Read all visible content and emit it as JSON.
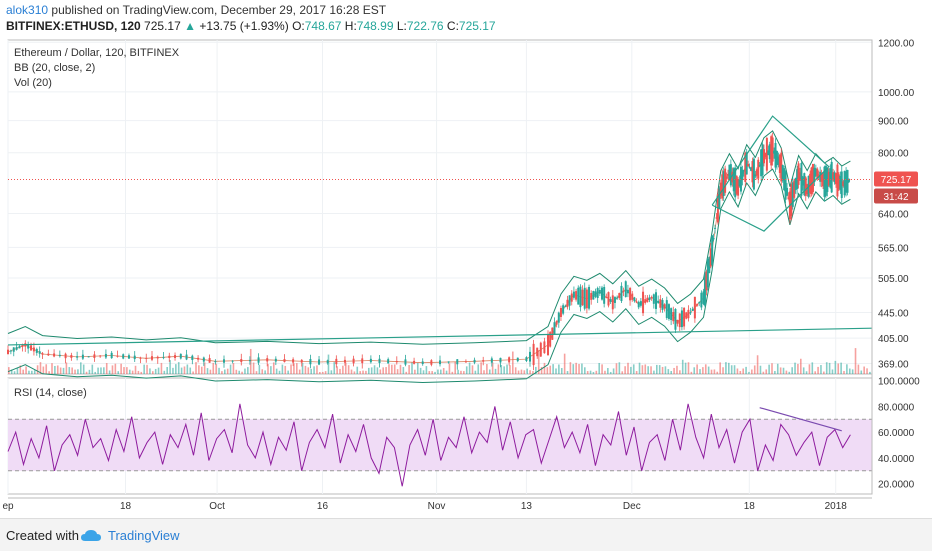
{
  "header": {
    "user": "alok310",
    "published_text": "published on TradingView.com, December 29, 2017 16:28 EST",
    "symbol": "BITFINEX:ETHUSD, 120",
    "last": "725.17",
    "change_arrow": "▲",
    "change": "+13.75 (+1.93%)",
    "o_label": "O:",
    "o_value": "748.67",
    "h_label": "H:",
    "h_value": "748.99",
    "l_label": "L:",
    "l_value": "722.76",
    "c_label": "C:",
    "c_value": "725.17"
  },
  "legend": {
    "title": "Ethereum / Dollar, 120, BITFINEX",
    "bb": "BB (20, close, 2)",
    "vol": "Vol (20)",
    "rsi": "RSI (14, close)"
  },
  "price_badges": {
    "last": "725.17",
    "timer": "31:42"
  },
  "colors": {
    "up": "#26a69a",
    "down": "#ef5350",
    "rsi_line": "#8e1c9e",
    "rsi_band": "#f0dcf6",
    "last_price": "#ef5350",
    "bb_line": "#1e8a6e",
    "brand": "#2a7fd4"
  },
  "footer": {
    "created": "Created with",
    "brand": "TradingView",
    "logo_icon": "tradingview-cloud-icon"
  },
  "chart_data": [
    {
      "type": "candlestick",
      "title": "Ethereum / Dollar, 120, BITFINEX",
      "scale": "log",
      "y_ticks": [
        369,
        405,
        445,
        505,
        565,
        640,
        725.17,
        800,
        900,
        1000,
        1200
      ],
      "y_tick_labels": [
        "369.00",
        "405.00",
        "445.00",
        "505.00",
        "565.00",
        "640.00",
        "725.17",
        "800.00",
        "900.00",
        "1000.00",
        "1200.00"
      ],
      "ylim": [
        355,
        1210
      ],
      "x_tick_labels": [
        "ep",
        "18",
        "Oct",
        "16",
        "Nov",
        "13",
        "Dec",
        "18",
        "2018"
      ],
      "x_ticks_fraction": [
        0.0,
        0.136,
        0.242,
        0.364,
        0.496,
        0.6,
        0.722,
        0.858,
        0.958
      ],
      "last_price": 725.17,
      "price_path": [
        [
          0.0,
          385
        ],
        [
          0.02,
          395
        ],
        [
          0.04,
          382
        ],
        [
          0.08,
          378
        ],
        [
          0.12,
          380
        ],
        [
          0.16,
          376
        ],
        [
          0.2,
          379
        ],
        [
          0.24,
          372
        ],
        [
          0.3,
          374
        ],
        [
          0.36,
          371
        ],
        [
          0.42,
          373
        ],
        [
          0.48,
          370
        ],
        [
          0.54,
          372
        ],
        [
          0.6,
          375
        ],
        [
          0.625,
          395
        ],
        [
          0.64,
          445
        ],
        [
          0.655,
          475
        ],
        [
          0.67,
          468
        ],
        [
          0.685,
          480
        ],
        [
          0.7,
          462
        ],
        [
          0.715,
          485
        ],
        [
          0.73,
          458
        ],
        [
          0.745,
          470
        ],
        [
          0.76,
          455
        ],
        [
          0.775,
          430
        ],
        [
          0.79,
          445
        ],
        [
          0.805,
          470
        ],
        [
          0.815,
          560
        ],
        [
          0.825,
          700
        ],
        [
          0.835,
          745
        ],
        [
          0.845,
          705
        ],
        [
          0.855,
          770
        ],
        [
          0.865,
          735
        ],
        [
          0.875,
          790
        ],
        [
          0.885,
          810
        ],
        [
          0.895,
          760
        ],
        [
          0.905,
          660
        ],
        [
          0.915,
          740
        ],
        [
          0.925,
          700
        ],
        [
          0.935,
          745
        ],
        [
          0.945,
          720
        ],
        [
          0.955,
          735
        ],
        [
          0.965,
          712
        ],
        [
          0.975,
          725
        ]
      ],
      "trendlines": [
        {
          "name": "support",
          "from": [
            0.0,
            395
          ],
          "to": [
            1.0,
            420
          ]
        },
        {
          "name": "diamond",
          "points": [
            [
              0.815,
              660
            ],
            [
              0.885,
              915
            ],
            [
              0.95,
              760
            ],
            [
              0.875,
              600
            ],
            [
              0.815,
              660
            ]
          ]
        }
      ]
    },
    {
      "type": "line",
      "title": "RSI (14, close)",
      "ylim": [
        12,
        102
      ],
      "y_ticks": [
        20,
        40,
        60,
        80,
        100
      ],
      "y_tick_labels": [
        "20.0000",
        "40.0000",
        "60.0000",
        "80.0000",
        "100.0000"
      ],
      "band": [
        30,
        70
      ],
      "series": [
        {
          "values": [
            45,
            60,
            35,
            55,
            40,
            65,
            30,
            50,
            58,
            42,
            70,
            48,
            55,
            38,
            62,
            45,
            72,
            40,
            52,
            60,
            35,
            58,
            48,
            66,
            42,
            75,
            38,
            55,
            62,
            44,
            82,
            50,
            40,
            60,
            35,
            56,
            46,
            68,
            30,
            52,
            62,
            48,
            74,
            36,
            58,
            45,
            66,
            40,
            28,
            56,
            48,
            18,
            50,
            62,
            42,
            70,
            38,
            56,
            48,
            72,
            44,
            60,
            52,
            80,
            46,
            68,
            40,
            58,
            62,
            36,
            54,
            72,
            48,
            60,
            44,
            66,
            34,
            58,
            50,
            76,
            42,
            64,
            30,
            52,
            58,
            38,
            70,
            46,
            82,
            56,
            40,
            74,
            48,
            62,
            36,
            60,
            70,
            30,
            50,
            38,
            66,
            58,
            42,
            52,
            60,
            34,
            56,
            62,
            48,
            58
          ]
        }
      ],
      "trendline": {
        "from": [
          0.87,
          79
        ],
        "to": [
          0.965,
          61
        ]
      }
    }
  ]
}
